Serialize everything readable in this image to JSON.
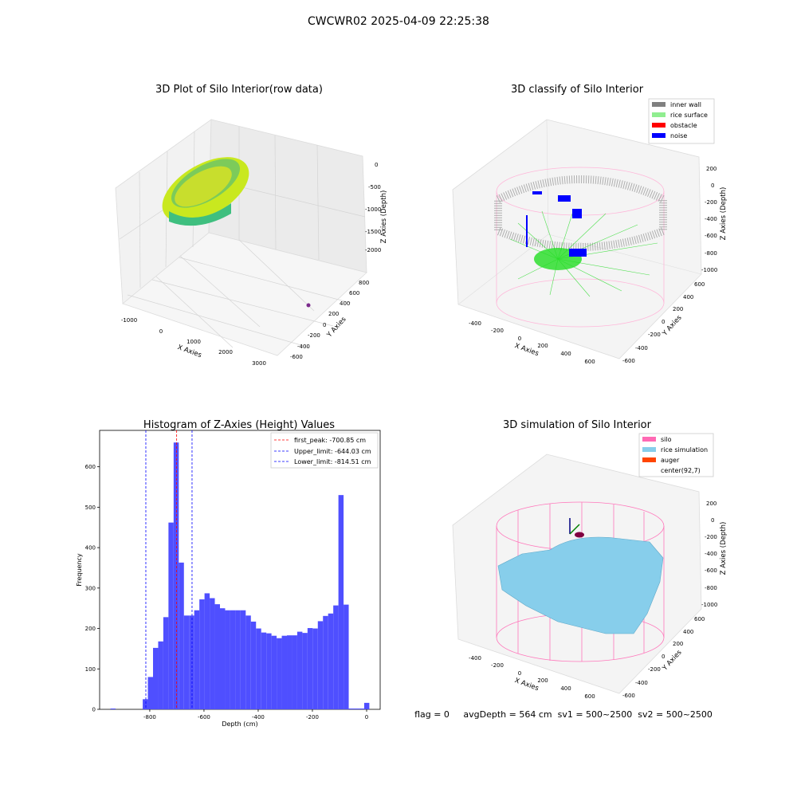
{
  "figure_title": "CWCWR02 2025-04-09 22:25:38",
  "status_line": "flag = 0     avgDepth = 564 cm  sv1 = 500~2500  sv2 = 500~2500",
  "colors": {
    "hist_bar": "#4f4fff",
    "peak_line": "#ff0000",
    "limit_line": "#0000ff",
    "inner_wall": "#808080",
    "rice_surface": "#90ee90",
    "obstacle": "#ff0000",
    "noise": "#0000ff",
    "silo": "#ff69b4",
    "rice_simulation": "#87ceeb",
    "auger": "#ff4500"
  },
  "chart_data": [
    {
      "type": "scatter3d",
      "title": "3D Plot of Silo Interior(row data)",
      "xlabel": "X Axies",
      "ylabel": "Y Axies",
      "zlabel": "Z Axies (Depth)",
      "x_ticks": [
        "-1000",
        "0",
        "1000",
        "2000",
        "3000"
      ],
      "y_ticks": [
        "-600",
        "-400",
        "-200",
        "0",
        "200",
        "400",
        "600",
        "800"
      ],
      "z_ticks": [
        "0",
        "-500",
        "-1000",
        "-1500",
        "-2000"
      ],
      "xlim": [
        -1200,
        3200
      ],
      "ylim": [
        -700,
        900
      ],
      "zlim": [
        -2300,
        100
      ]
    },
    {
      "type": "scatter3d",
      "title": "3D classify of Silo Interior",
      "xlabel": "X Axies",
      "ylabel": "Y Axies",
      "zlabel": "Z Axies (Depth)",
      "x_ticks": [
        "-400",
        "-200",
        "0",
        "200",
        "400",
        "600"
      ],
      "y_ticks": [
        "-600",
        "-400",
        "-200",
        "0",
        "200",
        "400",
        "600"
      ],
      "z_ticks": [
        "200",
        "0",
        "-200",
        "-400",
        "-600",
        "-800",
        "-1000"
      ],
      "legend": [
        "inner wall",
        "rice surface",
        "obstacle",
        "noise"
      ],
      "legend_position": "top-right"
    },
    {
      "type": "bar",
      "title": "Histogram of Z-Axies (Height) Values",
      "xlabel": "Depth (cm)",
      "ylabel": "Frequency",
      "xlim": [
        -985,
        50
      ],
      "ylim": [
        0,
        690
      ],
      "x_ticks": [
        -800,
        -600,
        -400,
        -200,
        0
      ],
      "y_ticks": [
        0,
        100,
        200,
        300,
        400,
        500,
        600
      ],
      "bin_width": 19,
      "bin_starts": [
        -945,
        -826,
        -807,
        -788,
        -769,
        -750,
        -731,
        -712,
        -693,
        -674,
        -655,
        -636,
        -617,
        -598,
        -579,
        -560,
        -541,
        -522,
        -503,
        -484,
        -465,
        -446,
        -427,
        -408,
        -389,
        -370,
        -351,
        -332,
        -313,
        -294,
        -275,
        -256,
        -237,
        -218,
        -199,
        -180,
        -161,
        -142,
        -123,
        -104,
        -85,
        -66,
        -47,
        -28,
        -9
      ],
      "values": [
        2,
        25,
        80,
        152,
        168,
        228,
        462,
        660,
        363,
        232,
        232,
        245,
        272,
        287,
        275,
        260,
        250,
        245,
        245,
        245,
        245,
        232,
        217,
        200,
        190,
        188,
        182,
        176,
        182,
        183,
        183,
        192,
        189,
        201,
        200,
        218,
        231,
        237,
        257,
        530,
        259,
        2,
        2,
        2,
        16
      ],
      "vlines": [
        {
          "label": "first_peak: -700.85 cm",
          "x": -700.85,
          "color": "#ff0000"
        },
        {
          "label": "Upper_limit: -644.03 cm",
          "x": -644.03,
          "color": "#0000ff"
        },
        {
          "label": "Lower_limit: -814.51 cm",
          "x": -814.51,
          "color": "#0000ff"
        }
      ],
      "legend_position": "top-right"
    },
    {
      "type": "surface3d",
      "title": "3D simulation of Silo Interior",
      "xlabel": "X Axies",
      "ylabel": "Y Axies",
      "zlabel": "Z Axies (Depth)",
      "x_ticks": [
        "-400",
        "-200",
        "0",
        "200",
        "400",
        "600"
      ],
      "y_ticks": [
        "-600",
        "-400",
        "-200",
        "0",
        "200",
        "400",
        "600"
      ],
      "z_ticks": [
        "200",
        "0",
        "-200",
        "-400",
        "-600",
        "-800",
        "-1000"
      ],
      "legend": [
        "silo",
        "rice simulation",
        "auger",
        "center(92,7)"
      ],
      "legend_position": "top-right"
    }
  ]
}
